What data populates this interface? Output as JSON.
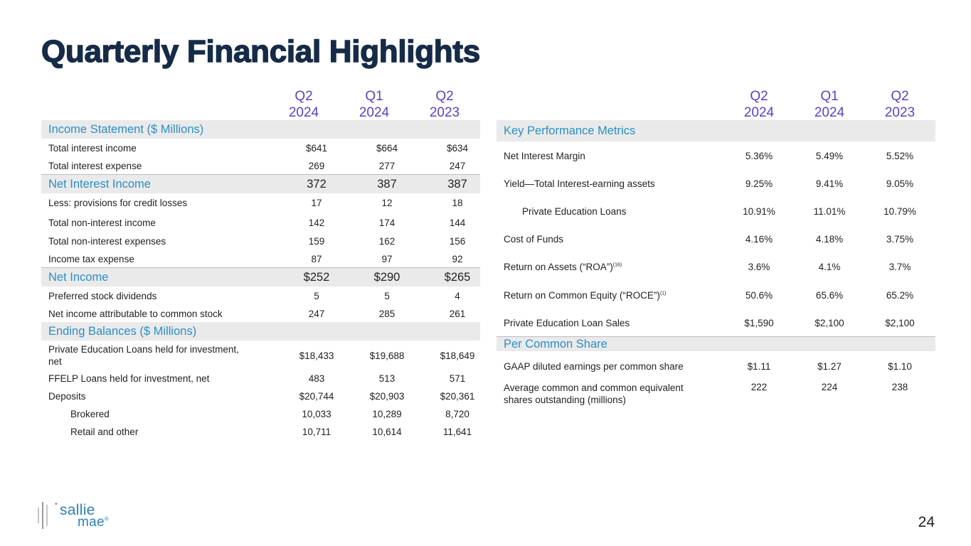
{
  "title": "Quarterly Financial Highlights",
  "page_number": "24",
  "logo": {
    "line1": "sallie",
    "line2": "mae",
    "mark": "®"
  },
  "left": {
    "col_headers": [
      {
        "q": "Q2",
        "y": "2024"
      },
      {
        "q": "Q1",
        "y": "2024"
      },
      {
        "q": "Q2",
        "y": "2023"
      }
    ],
    "sections": {
      "income_statement": "Income Statement ($ Millions)",
      "net_interest_income": {
        "label": "Net Interest Income",
        "values": [
          "372",
          "387",
          "387"
        ]
      },
      "net_income": {
        "label": "Net Income",
        "values": [
          "$252",
          "$290",
          "$265"
        ]
      },
      "ending_balances": "Ending Balances ($ Millions)"
    },
    "rows": [
      {
        "label": "Total interest income",
        "values": [
          "$641",
          "$664",
          "$634"
        ]
      },
      {
        "label": "Total interest expense",
        "values": [
          "269",
          "277",
          "247"
        ]
      },
      {
        "label": "Less: provisions for credit losses",
        "values": [
          "17",
          "12",
          "18"
        ]
      },
      {
        "label": "Total non-interest income",
        "values": [
          "142",
          "174",
          "144"
        ]
      },
      {
        "label": "Total non-interest expenses",
        "values": [
          "159",
          "162",
          "156"
        ]
      },
      {
        "label": "Income tax expense",
        "values": [
          "87",
          "97",
          "92"
        ]
      },
      {
        "label": "Preferred stock dividends",
        "values": [
          "5",
          "5",
          "4"
        ]
      },
      {
        "label": "Net income attributable to common stock",
        "values": [
          "247",
          "285",
          "261"
        ]
      },
      {
        "label_line1": "Private Education Loans held for investment,",
        "label_line2": "net",
        "values": [
          "$18,433",
          "$19,688",
          "$18,649"
        ]
      },
      {
        "label": "FFELP Loans held for investment, net",
        "values": [
          "483",
          "513",
          "571"
        ]
      },
      {
        "label": "Deposits",
        "values": [
          "$20,744",
          "$20,903",
          "$20,361"
        ]
      },
      {
        "label": "Brokered",
        "values": [
          "10,033",
          "10,289",
          "8,720"
        ]
      },
      {
        "label": "Retail and other",
        "values": [
          "10,711",
          "10,614",
          "11,641"
        ]
      }
    ]
  },
  "right": {
    "col_headers": [
      {
        "q": "Q2",
        "y": "2024"
      },
      {
        "q": "Q1",
        "y": "2024"
      },
      {
        "q": "Q2",
        "y": "2023"
      }
    ],
    "sections": {
      "kpm": "Key Performance Metrics",
      "per_share": "Per Common Share"
    },
    "rows": [
      {
        "label": "Net Interest Margin",
        "values": [
          "5.36%",
          "5.49%",
          "5.52%"
        ]
      },
      {
        "label": "Yield—Total Interest-earning assets",
        "values": [
          "9.25%",
          "9.41%",
          "9.05%"
        ]
      },
      {
        "label": "Private Education Loans",
        "values": [
          "10.91%",
          "11.01%",
          "10.79%"
        ]
      },
      {
        "label": "Cost of Funds",
        "values": [
          "4.16%",
          "4.18%",
          "3.75%"
        ]
      },
      {
        "label": "Return on Assets (“ROA”)",
        "sup": "(16)",
        "values": [
          "3.6%",
          "4.1%",
          "3.7%"
        ]
      },
      {
        "label": "Return on Common Equity (“ROCE”)",
        "sup": "(1)",
        "values": [
          "50.6%",
          "65.6%",
          "65.2%"
        ]
      },
      {
        "label": "Private Education Loan Sales",
        "values": [
          "$1,590",
          "$2,100",
          "$2,100"
        ]
      },
      {
        "label": "GAAP diluted earnings per common share",
        "values": [
          "$1.11",
          "$1.27",
          "$1.10"
        ]
      },
      {
        "label_line1": "Average common and common equivalent",
        "label_line2": "shares outstanding (millions)",
        "values": [
          "222",
          "224",
          "238"
        ]
      }
    ]
  }
}
